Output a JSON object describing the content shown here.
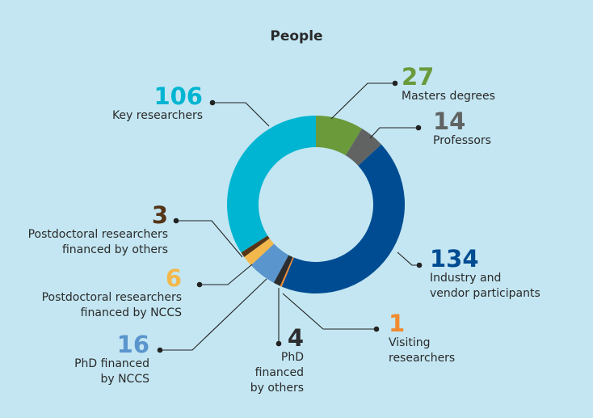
{
  "title": "People",
  "chart_data": {
    "type": "pie",
    "donut": true,
    "title": "People",
    "categories": [
      "Masters degrees",
      "Professors",
      "Industry and vendor participants",
      "Visiting researchers",
      "PhD financed by others",
      "PhD financed by NCCS",
      "Postdoctoral researchers financed by NCCS",
      "Postdoctoral researchers financed by others",
      "Key researchers"
    ],
    "values": [
      27,
      14,
      134,
      1,
      4,
      16,
      6,
      3,
      106
    ],
    "colors": [
      "#6a9a3a",
      "#616363",
      "#004c92",
      "#f08a30",
      "#2b2d2f",
      "#5b95cd",
      "#f2b84b",
      "#553518",
      "#00b5d1"
    ],
    "labels": [
      {
        "value": "27",
        "lines": [
          "Masters degrees"
        ]
      },
      {
        "value": "14",
        "lines": [
          "Professors"
        ]
      },
      {
        "value": "134",
        "lines": [
          "Industry and",
          "vendor participants"
        ]
      },
      {
        "value": "1",
        "lines": [
          "Visiting",
          "researchers"
        ]
      },
      {
        "value": "4",
        "lines": [
          "PhD financed",
          "by others"
        ]
      },
      {
        "value": "16",
        "lines": [
          "PhD financed",
          "by NCCS"
        ]
      },
      {
        "value": "6",
        "lines": [
          "Postdoctoral researchers",
          "financed by NCCS"
        ]
      },
      {
        "value": "3",
        "lines": [
          "Postdoctoral researchers",
          "financed by others"
        ]
      },
      {
        "value": "106",
        "lines": [
          "Key researchers"
        ]
      }
    ]
  }
}
